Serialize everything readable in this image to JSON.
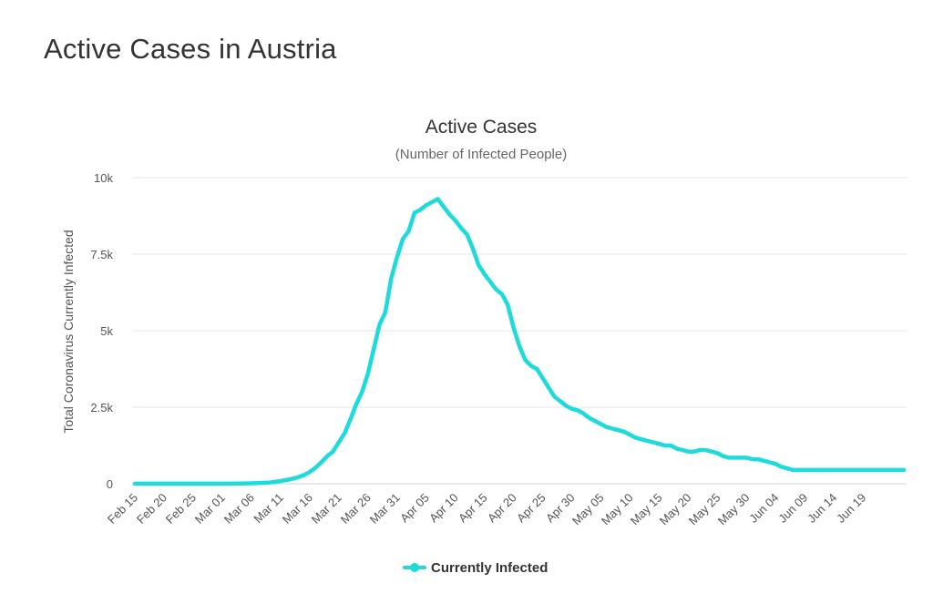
{
  "page": {
    "title": "Active Cases in Austria"
  },
  "chart_data": {
    "type": "line",
    "title": "Active Cases",
    "subtitle": "(Number of Infected People)",
    "xlabel": "",
    "ylabel": "Total Coronavirus Currently Infected",
    "ylim": [
      0,
      10000
    ],
    "y_ticks": [
      {
        "value": 0,
        "label": "0"
      },
      {
        "value": 2500,
        "label": "2.5k"
      },
      {
        "value": 5000,
        "label": "5k"
      },
      {
        "value": 7500,
        "label": "7.5k"
      },
      {
        "value": 10000,
        "label": "10k"
      }
    ],
    "x_start": "Feb 15",
    "x_end": "Jun 24",
    "x_tick_labels": [
      "Feb 15",
      "Feb 20",
      "Feb 25",
      "Mar 01",
      "Mar 06",
      "Mar 11",
      "Mar 16",
      "Mar 21",
      "Mar 26",
      "Mar 31",
      "Apr 05",
      "Apr 10",
      "Apr 15",
      "Apr 20",
      "Apr 25",
      "Apr 30",
      "May 05",
      "May 10",
      "May 15",
      "May 20",
      "May 25",
      "May 30",
      "Jun 04",
      "Jun 09",
      "Jun 14",
      "Jun 19"
    ],
    "grid": true,
    "legend_position": "bottom-center",
    "color": "#1ddbdb",
    "series": [
      {
        "name": "Currently Infected",
        "values": [
          3,
          3,
          3,
          3,
          3,
          3,
          3,
          3,
          3,
          3,
          3,
          3,
          3,
          3,
          3,
          4,
          4,
          5,
          8,
          12,
          15,
          20,
          30,
          40,
          60,
          90,
          120,
          160,
          210,
          280,
          380,
          520,
          700,
          900,
          1050,
          1350,
          1650,
          2100,
          2600,
          3000,
          3600,
          4400,
          5200,
          5600,
          6700,
          7400,
          8000,
          8250,
          8850,
          8950,
          9100,
          9200,
          9300,
          9050,
          8800,
          8600,
          8350,
          8150,
          7700,
          7150,
          6850,
          6600,
          6350,
          6200,
          5850,
          5100,
          4500,
          4050,
          3850,
          3750,
          3450,
          3150,
          2850,
          2700,
          2550,
          2450,
          2400,
          2300,
          2150,
          2050,
          1950,
          1850,
          1800,
          1750,
          1700,
          1600,
          1500,
          1450,
          1400,
          1350,
          1300,
          1250,
          1250,
          1150,
          1100,
          1050,
          1050,
          1100,
          1100,
          1050,
          1000,
          900,
          850,
          850,
          850,
          850,
          800,
          800,
          750,
          700,
          650,
          550,
          500,
          450,
          450,
          450,
          450,
          450,
          450,
          450,
          450,
          450,
          450,
          450,
          450,
          450,
          450,
          450,
          450,
          450,
          450,
          450,
          450
        ]
      }
    ]
  }
}
